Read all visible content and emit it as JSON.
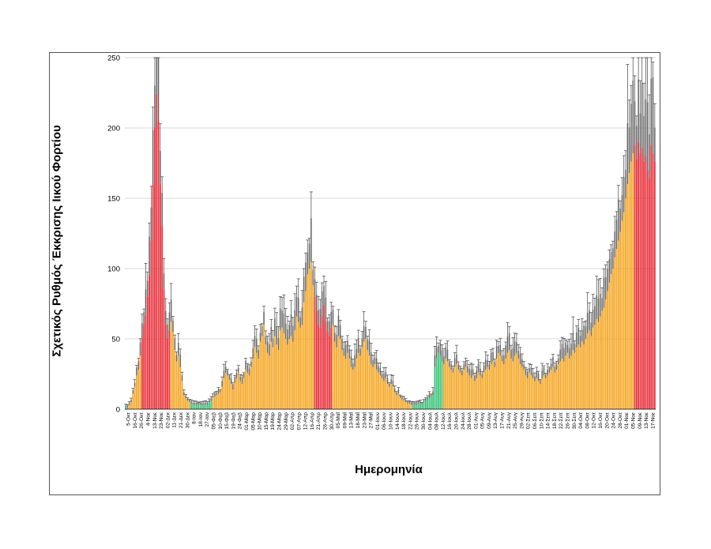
{
  "chart_data": {
    "type": "bar",
    "title": "",
    "ylabel": "Σχετικός Ρυθμός Έκκρισης Ιικού Φορτίου",
    "xlabel": "Ημερομηνία",
    "ylim": [
      0,
      250
    ],
    "yticks": [
      0,
      50,
      100,
      150,
      200,
      250
    ],
    "grid": true,
    "error_bars": true,
    "colors": {
      "red": "#e8303a",
      "orange": "#f5a623",
      "green": "#3bc47a",
      "error_fill": "#a0a0a0",
      "error_line": "#444444",
      "grid": "#d9d9d9"
    },
    "tick_labels": [
      "5-Οκτ",
      "16-Οκτ",
      "26-Οκτ",
      "4-Νοε",
      "13-Νοε",
      "23-Νοε",
      "02-Δεκ",
      "11-Δεκ",
      "21-Δεκ",
      "30-Δεκ",
      "8-Ιαν",
      "18-Ιαν",
      "27-Ιαν",
      "05-Φεβ",
      "10-Φεβ",
      "15-Φεβ",
      "19-Φεβ",
      "24-Φεβ",
      "01-Μαρ",
      "05-Μαρ",
      "10-Μαρ",
      "15-Μαρ",
      "19-Μαρ",
      "24-Μαρ",
      "29-Μαρ",
      "02-Απρ",
      "07-Απρ",
      "12-Απρ",
      "16-Απρ",
      "21-Απρ",
      "26-Απρ",
      "30-Απρ",
      "05-Μαΐ",
      "09-Μαΐ",
      "13-Μαΐ",
      "18-Μαΐ",
      "23-Μαΐ",
      "27-Μαΐ",
      "01-Ιουν",
      "06-Ιουν",
      "10-Ιουν",
      "14-Ιουν",
      "18-Ιουν",
      "22-Ιουν",
      "26-Ιουν",
      "30-Ιουν",
      "04-Ιουλ",
      "08-Ιουλ",
      "12-Ιουλ",
      "16-Ιουλ",
      "20-Ιουλ",
      "24-Ιουλ",
      "28-Ιουλ",
      "01-Αυγ",
      "05-Αυγ",
      "09-Αυγ",
      "13-Αυγ",
      "17-Αυγ",
      "21-Αυγ",
      "25-Αυγ",
      "29-Αυγ",
      "02-Σεπ",
      "06-Σεπ",
      "10-Σεπ",
      "14-Σεπ",
      "18-Σεπ",
      "22-Σεπ",
      "26-Σεπ",
      "30-Σεπ",
      "04-Οκτ",
      "08-Οκτ",
      "12-Οκτ",
      "16-Οκτ",
      "20-Οκτ",
      "24-Οκτ",
      "28-Οκτ",
      "01-Νοε",
      "05-Νοε",
      "09-Νοε",
      "13-Νοε",
      "17-Νοε"
    ],
    "values": [
      1,
      1,
      3,
      5,
      11,
      16,
      24,
      28,
      38,
      50,
      60,
      66,
      80,
      95,
      120,
      160,
      200,
      224,
      205,
      160,
      130,
      85,
      60,
      50,
      56,
      62,
      55,
      42,
      34,
      38,
      30,
      20,
      10,
      8,
      6,
      5,
      4,
      3,
      3,
      3,
      3,
      3,
      3,
      3,
      3,
      3,
      5,
      6,
      8,
      9,
      10,
      11,
      12,
      16,
      22,
      26,
      24,
      21,
      18,
      14,
      19,
      22,
      26,
      20,
      18,
      22,
      28,
      26,
      24,
      30,
      36,
      44,
      40,
      36,
      48,
      52,
      60,
      46,
      40,
      38,
      48,
      44,
      52,
      46,
      42,
      56,
      58,
      54,
      50,
      46,
      50,
      52,
      48,
      56,
      66,
      62,
      58,
      60,
      76,
      84,
      96,
      100,
      105,
      88,
      80,
      70,
      60,
      58,
      66,
      74,
      62,
      55,
      52,
      58,
      60,
      48,
      44,
      52,
      50,
      42,
      38,
      36,
      40,
      36,
      30,
      28,
      30,
      36,
      40,
      38,
      44,
      48,
      50,
      42,
      38,
      32,
      30,
      32,
      28,
      26,
      24,
      22,
      20,
      22,
      18,
      16,
      18,
      16,
      12,
      10,
      11,
      8,
      7,
      6,
      5,
      4,
      4,
      3,
      3,
      3,
      3,
      4,
      4,
      3,
      5,
      6,
      7,
      8,
      9,
      10,
      30,
      36,
      40,
      38,
      34,
      32,
      36,
      34,
      30,
      28,
      26,
      30,
      32,
      28,
      26,
      24,
      28,
      30,
      26,
      24,
      22,
      24,
      20,
      22,
      26,
      24,
      22,
      26,
      28,
      30,
      28,
      32,
      34,
      30,
      36,
      40,
      38,
      34,
      32,
      36,
      40,
      42,
      36,
      34,
      38,
      40,
      36,
      32,
      30,
      28,
      24,
      22,
      26,
      24,
      22,
      20,
      22,
      20,
      18,
      22,
      24,
      22,
      24,
      26,
      28,
      30,
      26,
      28,
      32,
      34,
      36,
      34,
      38,
      40,
      36,
      38,
      42,
      40,
      44,
      46,
      44,
      48,
      46,
      50,
      54,
      56,
      52,
      58,
      60,
      64,
      62,
      66,
      70,
      72,
      78,
      84,
      90,
      96,
      100,
      108,
      114,
      120,
      126,
      134,
      140,
      150,
      160,
      168,
      176,
      182,
      188,
      178,
      190,
      182,
      186,
      176,
      180,
      170,
      164,
      188,
      182,
      176
    ],
    "segments": [
      {
        "color": "green",
        "from": 0,
        "to": 1
      },
      {
        "color": "orange",
        "from": 2,
        "to": 8
      },
      {
        "color": "red",
        "from": 9,
        "to": 24
      },
      {
        "color": "orange",
        "from": 25,
        "to": 35
      },
      {
        "color": "green",
        "from": 36,
        "to": 47
      },
      {
        "color": "orange",
        "from": 48,
        "to": 103
      },
      {
        "color": "red",
        "from": 104,
        "to": 113
      },
      {
        "color": "orange",
        "from": 114,
        "to": 157
      },
      {
        "color": "green",
        "from": 158,
        "to": 174
      },
      {
        "color": "orange",
        "from": 175,
        "to": 279
      },
      {
        "color": "red",
        "from": 280,
        "to": 311
      }
    ]
  }
}
